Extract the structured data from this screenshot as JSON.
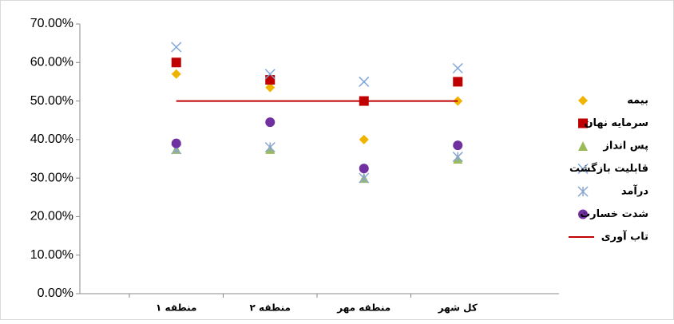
{
  "chart_data": {
    "type": "scatter",
    "categories": [
      "منطقه ۱",
      "منطقه ۲",
      "منطقه مهر",
      "کل شهر"
    ],
    "series": [
      {
        "name": "بیمه",
        "color": "#f0b400",
        "marker": "diamond",
        "values": [
          57,
          53.5,
          40,
          50
        ]
      },
      {
        "name": "سرمایه نهان",
        "color": "#c00000",
        "marker": "square",
        "values": [
          60,
          55.5,
          50,
          55
        ]
      },
      {
        "name": "پس انداز",
        "color": "#9bbb59",
        "marker": "triangle",
        "values": [
          37.5,
          37.5,
          30,
          35
        ]
      },
      {
        "name": "قابلیت بازگشت",
        "color": "#7fa7d8",
        "marker": "x",
        "values": [
          64,
          57,
          55,
          58.5
        ]
      },
      {
        "name": "درآمد",
        "color": "#8aa6cf",
        "marker": "star",
        "values": [
          37.5,
          38,
          30,
          35.5
        ]
      },
      {
        "name": "شدت خسارت",
        "color": "#7030a0",
        "marker": "circle",
        "values": [
          39,
          44.5,
          32.5,
          38.5
        ]
      },
      {
        "name": "تاب آوری",
        "color": "#c00000",
        "marker": "line",
        "values": [
          50,
          50,
          50,
          50
        ]
      }
    ],
    "ylim": [
      0,
      70
    ],
    "yticks": [
      {
        "value": 0,
        "label": "0.00%"
      },
      {
        "value": 10,
        "label": "10.00%"
      },
      {
        "value": 20,
        "label": "20.00%"
      },
      {
        "value": 30,
        "label": "30.00%"
      },
      {
        "value": 40,
        "label": "40.00%"
      },
      {
        "value": 50,
        "label": "50.00%"
      },
      {
        "value": 60,
        "label": "60.00%"
      },
      {
        "value": 70,
        "label": "70.00%"
      }
    ],
    "legend": "right"
  }
}
